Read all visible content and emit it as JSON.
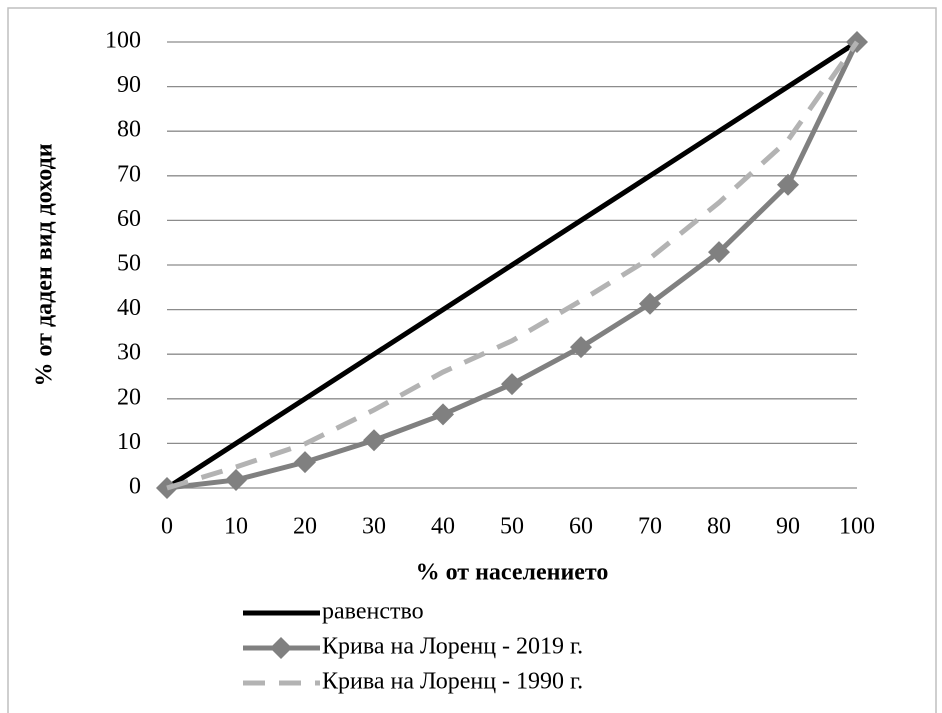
{
  "chart_data": {
    "type": "line",
    "x_label": "% от населението",
    "y_label": "%  от  даден вид  доходи",
    "x": [
      0,
      10,
      20,
      30,
      40,
      50,
      60,
      70,
      80,
      90,
      100
    ],
    "series": [
      {
        "name": "равенство",
        "color": "#000000",
        "line_style": "solid",
        "marker": null,
        "values": [
          0,
          10,
          20,
          30,
          40,
          50,
          60,
          70,
          80,
          90,
          100
        ]
      },
      {
        "name": "Крива на Лоренц - 2019 г.",
        "color": "#808080",
        "line_style": "solid",
        "marker": "diamond",
        "values": [
          0,
          1.8,
          5.8,
          10.7,
          16.5,
          23.3,
          31.6,
          41.3,
          52.9,
          68,
          100
        ]
      },
      {
        "name": "Крива на Лоренц - 1990 г.",
        "color": "#b3b3b3",
        "line_style": "dashed",
        "marker": null,
        "values": [
          0,
          4.7,
          9.9,
          17.5,
          26,
          33,
          42,
          51.5,
          64,
          78,
          100
        ]
      }
    ],
    "xlim": [
      0,
      100
    ],
    "xticks": [
      0,
      10,
      20,
      30,
      40,
      50,
      60,
      70,
      80,
      90,
      100
    ],
    "ylim": [
      0,
      100
    ],
    "yticks": [
      0,
      10,
      20,
      30,
      40,
      50,
      60,
      70,
      80,
      90,
      100
    ],
    "grid": true
  }
}
